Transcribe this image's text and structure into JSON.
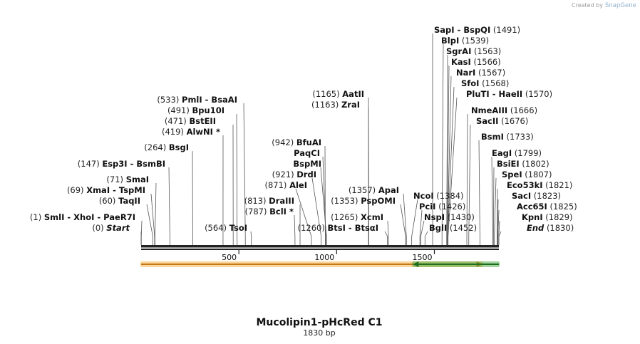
{
  "brand": {
    "prefix": "Created by",
    "name": "SnapGene"
  },
  "map": {
    "title": "Mucolipin1-pHcRed C1",
    "length_label": "1830 bp",
    "length_bp": 1830,
    "ticks": [
      {
        "bp": 500,
        "label": "500"
      },
      {
        "bp": 1000,
        "label": "1000"
      },
      {
        "bp": 1500,
        "label": "1500"
      }
    ],
    "features": [
      {
        "name": "orange-feature",
        "start": 0,
        "end": 1745,
        "direction": "forward",
        "color": "#f5a623",
        "edge": "#c4781a"
      },
      {
        "name": "green-feature",
        "start": 1390,
        "end": 1830,
        "direction": "reverse",
        "color": "#2ea02e",
        "edge": "#1f6e1f"
      }
    ],
    "sites_left": [
      {
        "pos": "(533)",
        "bp": 533,
        "names": [
          "PmlI",
          "BsaAI"
        ]
      },
      {
        "pos": "(491)",
        "bp": 491,
        "names": [
          "Bpu10I"
        ]
      },
      {
        "pos": "(471)",
        "bp": 471,
        "names": [
          "BstEII"
        ]
      },
      {
        "pos": "(419)",
        "bp": 419,
        "names": [
          "AlwNI"
        ],
        "star": true
      },
      {
        "pos": "(264)",
        "bp": 264,
        "names": [
          "BsgI"
        ]
      },
      {
        "pos": "(147)",
        "bp": 147,
        "names": [
          "Esp3I",
          "BsmBI"
        ]
      },
      {
        "pos": "(71)",
        "bp": 71,
        "names": [
          "SmaI"
        ]
      },
      {
        "pos": "(69)",
        "bp": 69,
        "names": [
          "XmaI",
          "TspMI"
        ]
      },
      {
        "pos": "(60)",
        "bp": 60,
        "names": [
          "TaqII"
        ]
      },
      {
        "pos": "(1)",
        "bp": 1,
        "names": [
          "SmlI",
          "XhoI",
          "PaeR7I"
        ]
      },
      {
        "pos": "(0)",
        "bp": 0,
        "names": [
          "Start"
        ],
        "italic": true
      },
      {
        "pos": "(942)",
        "bp": 942,
        "names": [
          "BfuAI"
        ]
      },
      {
        "pos": "",
        "bp": 945,
        "names": [
          "PaqCI"
        ]
      },
      {
        "pos": "",
        "bp": 948,
        "names": [
          "BspMI"
        ]
      },
      {
        "pos": "(921)",
        "bp": 921,
        "names": [
          "DrdI"
        ]
      },
      {
        "pos": "(871)",
        "bp": 871,
        "names": [
          "AleI"
        ]
      },
      {
        "pos": "(813)",
        "bp": 813,
        "names": [
          "DraIII"
        ]
      },
      {
        "pos": "(787)",
        "bp": 787,
        "names": [
          "BclI"
        ],
        "star": true
      },
      {
        "pos": "(564)",
        "bp": 564,
        "names": [
          "TsoI"
        ]
      },
      {
        "pos": "(1165)",
        "bp": 1165,
        "names": [
          "AatII"
        ]
      },
      {
        "pos": "(1163)",
        "bp": 1163,
        "names": [
          "ZraI"
        ]
      },
      {
        "pos": "(1357)",
        "bp": 1357,
        "names": [
          "ApaI"
        ]
      },
      {
        "pos": "(1353)",
        "bp": 1353,
        "names": [
          "PspOMI"
        ]
      },
      {
        "pos": "(1265)",
        "bp": 1265,
        "names": [
          "XcmI"
        ]
      },
      {
        "pos": "(1260)",
        "bp": 1260,
        "names": [
          "BtsI",
          "BtsαI"
        ]
      }
    ],
    "sites_right": [
      {
        "pos": "(1491)",
        "bp": 1491,
        "names": [
          "SapI",
          "BspQI"
        ]
      },
      {
        "pos": "(1539)",
        "bp": 1539,
        "names": [
          "BlpI"
        ]
      },
      {
        "pos": "(1563)",
        "bp": 1563,
        "names": [
          "SgrAI"
        ]
      },
      {
        "pos": "(1566)",
        "bp": 1566,
        "names": [
          "KasI"
        ]
      },
      {
        "pos": "(1567)",
        "bp": 1567,
        "names": [
          "NarI"
        ]
      },
      {
        "pos": "(1568)",
        "bp": 1568,
        "names": [
          "SfoI"
        ]
      },
      {
        "pos": "(1570)",
        "bp": 1570,
        "names": [
          "PluTI",
          "HaeII"
        ]
      },
      {
        "pos": "(1666)",
        "bp": 1666,
        "names": [
          "NmeAIII"
        ]
      },
      {
        "pos": "(1676)",
        "bp": 1676,
        "names": [
          "SacII"
        ]
      },
      {
        "pos": "(1733)",
        "bp": 1733,
        "names": [
          "BsmI"
        ]
      },
      {
        "pos": "(1799)",
        "bp": 1799,
        "names": [
          "EagI"
        ]
      },
      {
        "pos": "(1802)",
        "bp": 1802,
        "names": [
          "BsiEI"
        ]
      },
      {
        "pos": "(1807)",
        "bp": 1807,
        "names": [
          "SpeI"
        ]
      },
      {
        "pos": "(1821)",
        "bp": 1821,
        "names": [
          "Eco53kI"
        ]
      },
      {
        "pos": "(1823)",
        "bp": 1823,
        "names": [
          "SacI"
        ]
      },
      {
        "pos": "(1825)",
        "bp": 1825,
        "names": [
          "Acc65I"
        ]
      },
      {
        "pos": "(1829)",
        "bp": 1829,
        "names": [
          "KpnI"
        ]
      },
      {
        "pos": "(1830)",
        "bp": 1830,
        "names": [
          "End"
        ],
        "italic": true
      },
      {
        "pos": "(1384)",
        "bp": 1384,
        "names": [
          "NcoI"
        ],
        "posAfter": true
      },
      {
        "pos": "(1426)",
        "bp": 1426,
        "names": [
          "PciI"
        ],
        "posAfter": true
      },
      {
        "pos": "(1430)",
        "bp": 1430,
        "names": [
          "NspI"
        ],
        "posAfter": true
      },
      {
        "pos": "(1452)",
        "bp": 1452,
        "names": [
          "BglI"
        ],
        "posAfter": true
      }
    ]
  }
}
